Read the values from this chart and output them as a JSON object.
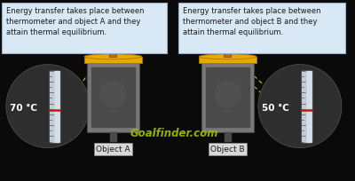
{
  "bg_color": "#0a0a0a",
  "text_box_bg": "#d8e8f4",
  "text_box_edge": "#9ab0c8",
  "text_left": "Energy transfer takes place between\nthermometer and object A and they\nattain thermal equilibrium.",
  "text_right": "Energy transfer takes place between\nthermometer and object B and they\nattain thermal equilibrium.",
  "label_A": "Object A",
  "label_B": "Object B",
  "temp_A": "70 °C",
  "temp_B": "50 °C",
  "watermark": "Goalfinder.com",
  "container_color": "#787878",
  "container_dark": "#4a4a4a",
  "lid_color": "#e8aa00",
  "lid_dark": "#b07800",
  "circle_color": "#2e2e2e",
  "circle_edge": "#555555",
  "therm_bg": "#c0ccd8",
  "therm_light": "#e8eef4",
  "therm_red": "#cc1111",
  "dashed_color": "#cccc00",
  "object_label_bg": "#d8d8d8",
  "object_label_edge": "#888888",
  "fitting_color": "#cc6600",
  "fitting_dark": "#884400",
  "tube_color": "#c0c8d0",
  "tube_light": "#e8eef4",
  "window_color": "#505050",
  "text_color": "#1a1a1a",
  "white": "#ffffff"
}
